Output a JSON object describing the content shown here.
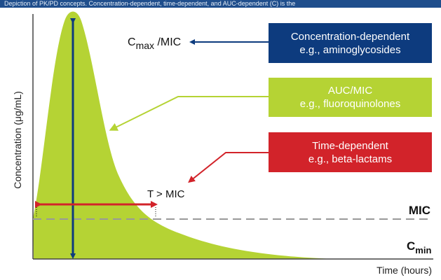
{
  "banner": {
    "text": "Depiction of PK/PD concepts. Concentration-dependent, time-dependent, and AUC-dependent (C) is the"
  },
  "axes": {
    "y_label": "Concentration (μg/mL)",
    "x_label": "Time (hours)"
  },
  "labels": {
    "cmax_main": "C",
    "cmax_sub": "max",
    "cmax_suffix": " /MIC",
    "t_mic": "T > MIC",
    "mic": "MIC",
    "cmin_main": "C",
    "cmin_sub": "min"
  },
  "boxes": {
    "concentration": {
      "line1": "Concentration-dependent",
      "line2": "e.g., aminoglycosides"
    },
    "auc": {
      "line1": "AUC/MIC",
      "line2": "e.g., fluoroquinolones"
    },
    "time": {
      "line1": "Time-dependent",
      "line2": "e.g., beta-lactams"
    }
  },
  "colors": {
    "curve_fill": "#b5d334",
    "cmax_arrow": "#0d3b7e",
    "t_mic_arrow": "#d2232a",
    "mic_line": "#999999",
    "banner": "#1f4e8c"
  }
}
